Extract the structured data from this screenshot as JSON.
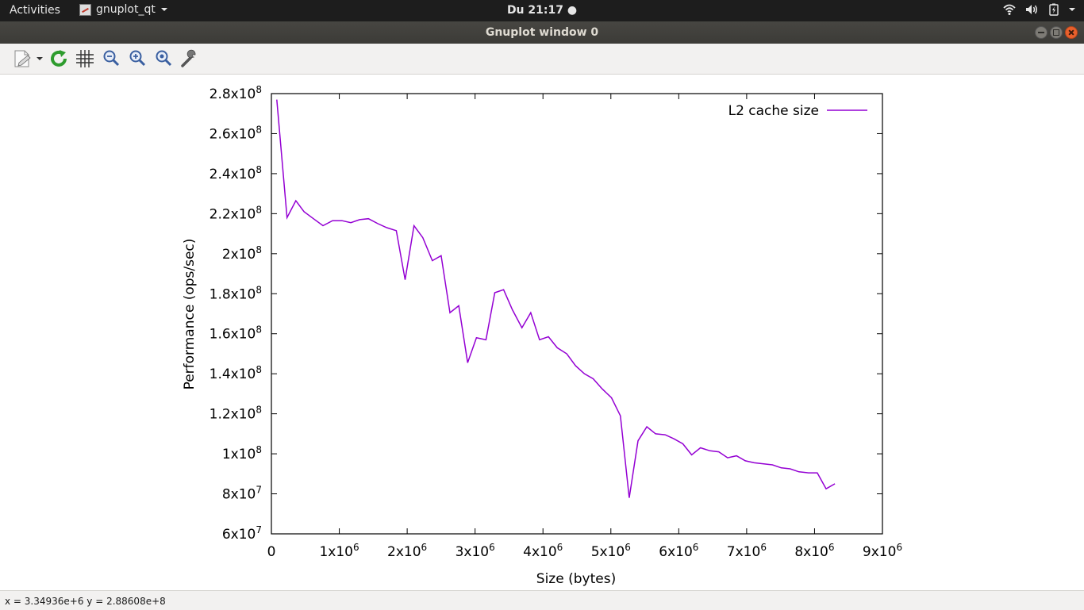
{
  "topbar": {
    "activities": "Activities",
    "app_name": "gnuplot_qt",
    "clock": "Du 21:17",
    "tray_icons": [
      "wifi-icon",
      "volume-icon",
      "battery-icon",
      "system-menu-chevron-icon"
    ]
  },
  "window": {
    "title": "Gnuplot window 0"
  },
  "toolbar": {
    "items": [
      "export-icon",
      "replot-icon",
      "grid-icon",
      "zoom-previous-icon",
      "zoom-next-icon",
      "autoscale-icon",
      "settings-icon"
    ]
  },
  "statusbar": {
    "text": "x = 3.34936e+6 y = 2.88608e+8"
  },
  "colors": {
    "series": "#9400d3",
    "accent_close": "#e8602c"
  },
  "chart_data": {
    "type": "line",
    "title": "",
    "xlabel": "Size (bytes)",
    "ylabel": "Performance (ops/sec)",
    "xlim": [
      0,
      9000000
    ],
    "ylim": [
      60000000,
      280000000
    ],
    "grid": false,
    "legend_position": "top-right",
    "x_ticks": [
      {
        "value": 0,
        "mantissa": "0",
        "exp": ""
      },
      {
        "value": 1000000,
        "mantissa": "1x10",
        "exp": "6"
      },
      {
        "value": 2000000,
        "mantissa": "2x10",
        "exp": "6"
      },
      {
        "value": 3000000,
        "mantissa": "3x10",
        "exp": "6"
      },
      {
        "value": 4000000,
        "mantissa": "4x10",
        "exp": "6"
      },
      {
        "value": 5000000,
        "mantissa": "5x10",
        "exp": "6"
      },
      {
        "value": 6000000,
        "mantissa": "6x10",
        "exp": "6"
      },
      {
        "value": 7000000,
        "mantissa": "7x10",
        "exp": "6"
      },
      {
        "value": 8000000,
        "mantissa": "8x10",
        "exp": "6"
      },
      {
        "value": 9000000,
        "mantissa": "9x10",
        "exp": "6"
      }
    ],
    "y_ticks": [
      {
        "value": 60000000,
        "mantissa": "6x10",
        "exp": "7"
      },
      {
        "value": 80000000,
        "mantissa": "8x10",
        "exp": "7"
      },
      {
        "value": 100000000,
        "mantissa": "1x10",
        "exp": "8"
      },
      {
        "value": 120000000,
        "mantissa": "1.2x10",
        "exp": "8"
      },
      {
        "value": 140000000,
        "mantissa": "1.4x10",
        "exp": "8"
      },
      {
        "value": 160000000,
        "mantissa": "1.6x10",
        "exp": "8"
      },
      {
        "value": 180000000,
        "mantissa": "1.8x10",
        "exp": "8"
      },
      {
        "value": 200000000,
        "mantissa": "2x10",
        "exp": "8"
      },
      {
        "value": 220000000,
        "mantissa": "2.2x10",
        "exp": "8"
      },
      {
        "value": 240000000,
        "mantissa": "2.4x10",
        "exp": "8"
      },
      {
        "value": 260000000,
        "mantissa": "2.6x10",
        "exp": "8"
      },
      {
        "value": 280000000,
        "mantissa": "2.8x10",
        "exp": "8"
      }
    ],
    "series": [
      {
        "name": "L2 cache size",
        "x": [
          80000,
          230000,
          360000,
          480000,
          620000,
          760000,
          900000,
          1040000,
          1170000,
          1300000,
          1430000,
          1570000,
          1700000,
          1840000,
          1970000,
          2100000,
          2230000,
          2370000,
          2500000,
          2630000,
          2760000,
          2890000,
          3020000,
          3160000,
          3290000,
          3420000,
          3550000,
          3690000,
          3820000,
          3950000,
          4080000,
          4210000,
          4350000,
          4480000,
          4610000,
          4740000,
          4870000,
          5010000,
          5140000,
          5270000,
          5400000,
          5530000,
          5660000,
          5800000,
          5930000,
          6060000,
          6190000,
          6320000,
          6460000,
          6590000,
          6720000,
          6850000,
          6980000,
          7110000,
          7250000,
          7380000,
          7510000,
          7640000,
          7770000,
          7910000,
          8040000,
          8170000,
          8300000
        ],
        "y": [
          277000000,
          218000000,
          226500000,
          221000000,
          217500000,
          214000000,
          216500000,
          216500000,
          215500000,
          217000000,
          217500000,
          215000000,
          213000000,
          211500000,
          187000000,
          214000000,
          208000000,
          196500000,
          199000000,
          170500000,
          174000000,
          145500000,
          158000000,
          157000000,
          180500000,
          182000000,
          172000000,
          163000000,
          170500000,
          157000000,
          158500000,
          153000000,
          150000000,
          144000000,
          140000000,
          137500000,
          132500000,
          128000000,
          119000000,
          78000000,
          106500000,
          113500000,
          110000000,
          109500000,
          107500000,
          105000000,
          99500000,
          103000000,
          101500000,
          101000000,
          98000000,
          99000000,
          96500000,
          95500000,
          95000000,
          94500000,
          93000000,
          92500000,
          91000000,
          90500000,
          90500000,
          82500000,
          85000000
        ]
      }
    ]
  }
}
